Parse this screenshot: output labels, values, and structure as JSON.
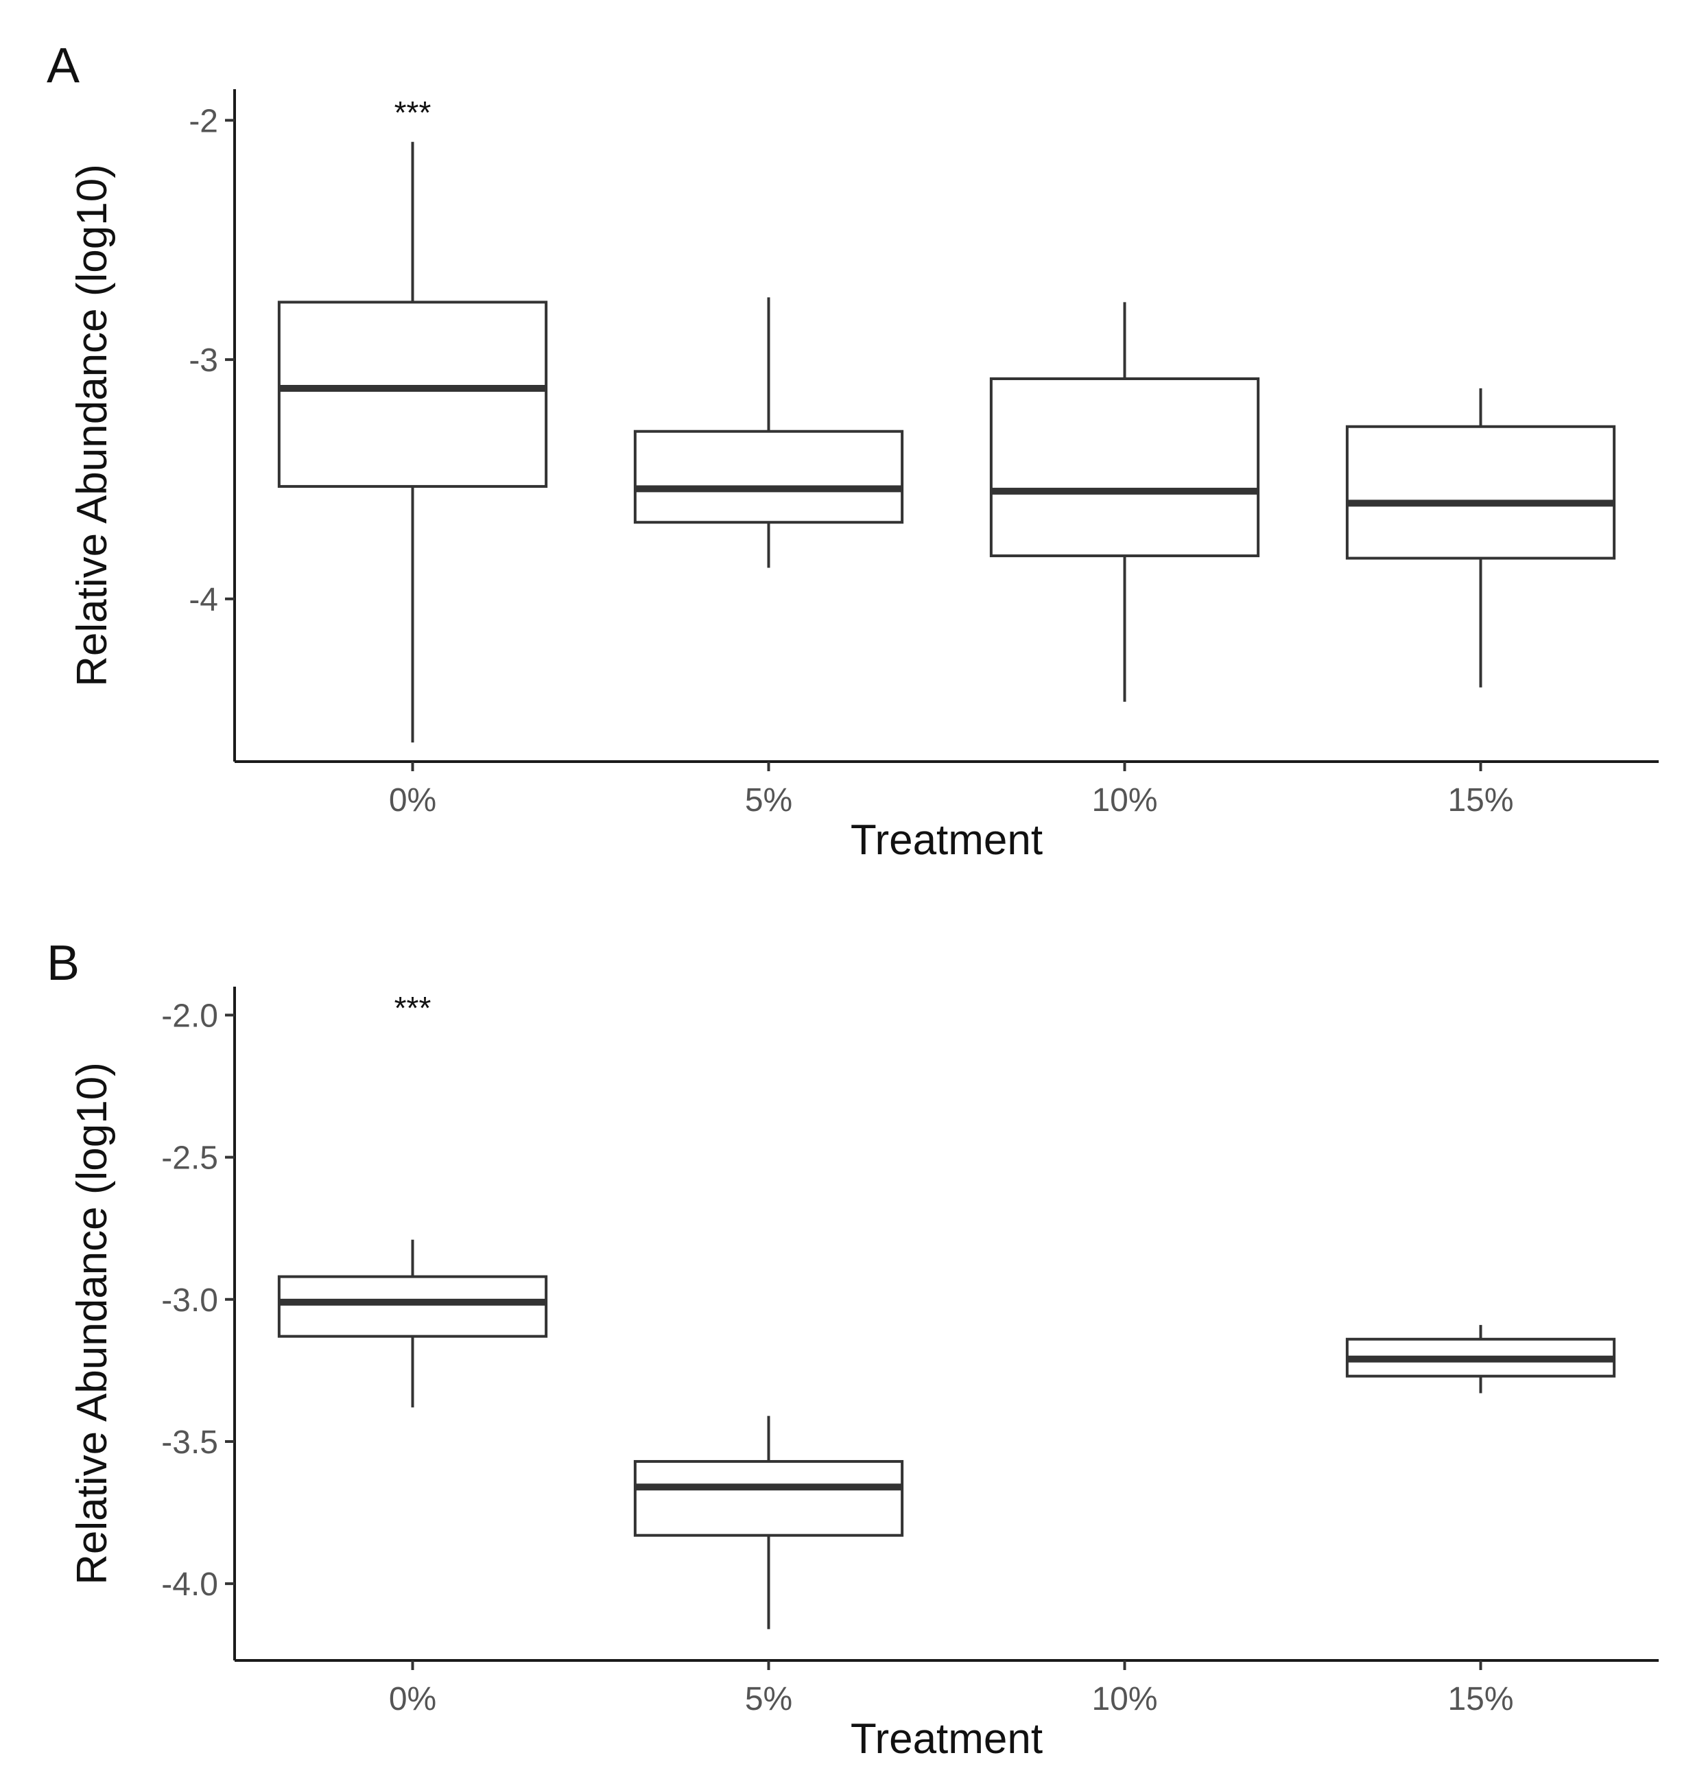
{
  "chart_data": [
    {
      "type": "boxplot",
      "panel_label": "A",
      "xlabel": "Treatment",
      "ylabel": "Relative Abundance (log10)",
      "categories": [
        "0%",
        "5%",
        "10%",
        "15%"
      ],
      "ylim": [
        -4.68,
        -1.87
      ],
      "yticks": [
        -2,
        -3,
        -4
      ],
      "ytick_labels": [
        "-2",
        "-3",
        "-4"
      ],
      "boxes": [
        {
          "category": "0%",
          "min": -4.6,
          "q1": -3.53,
          "median": -3.12,
          "q3": -2.76,
          "max": -2.09
        },
        {
          "category": "5%",
          "min": -3.87,
          "q1": -3.68,
          "median": -3.54,
          "q3": -3.3,
          "max": -2.74
        },
        {
          "category": "10%",
          "min": -4.43,
          "q1": -3.82,
          "median": -3.55,
          "q3": -3.08,
          "max": -2.76
        },
        {
          "category": "15%",
          "min": -4.37,
          "q1": -3.83,
          "median": -3.6,
          "q3": -3.28,
          "max": -3.12
        }
      ],
      "annotations": [
        {
          "category": "0%",
          "y": -1.95,
          "text": "***"
        }
      ]
    },
    {
      "type": "boxplot",
      "panel_label": "B",
      "xlabel": "Treatment",
      "ylabel": "Relative Abundance (log10)",
      "categories": [
        "0%",
        "5%",
        "10%",
        "15%"
      ],
      "ylim": [
        -4.27,
        -1.9
      ],
      "yticks": [
        -2.0,
        -2.5,
        -3.0,
        -3.5,
        -4.0
      ],
      "ytick_labels": [
        "-2.0",
        "-2.5",
        "-3.0",
        "-3.5",
        "-4.0"
      ],
      "boxes": [
        {
          "category": "0%",
          "min": -3.38,
          "q1": -3.13,
          "median": -3.01,
          "q3": -2.92,
          "max": -2.79
        },
        {
          "category": "5%",
          "min": -4.16,
          "q1": -3.83,
          "median": -3.66,
          "q3": -3.57,
          "max": -3.41
        },
        {
          "category": "15%",
          "min": -3.33,
          "q1": -3.27,
          "median": -3.21,
          "q3": -3.14,
          "max": -3.09
        }
      ],
      "annotations": [
        {
          "category": "0%",
          "y": -1.96,
          "text": "***"
        }
      ]
    }
  ]
}
